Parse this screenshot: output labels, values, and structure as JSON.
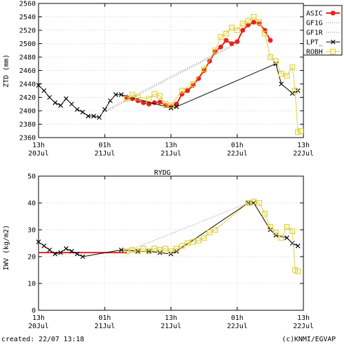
{
  "chart_data": [
    {
      "type": "line",
      "title": "",
      "ylabel": "ZTD (mm)",
      "ylim": [
        2360,
        2560
      ],
      "yticks": [
        2360,
        2380,
        2400,
        2420,
        2440,
        2460,
        2480,
        2500,
        2520,
        2540,
        2560
      ],
      "xlim_hours": [
        0,
        48
      ],
      "xticks": [
        {
          "h": 0,
          "top": "13h",
          "bottom": "20Jul"
        },
        {
          "h": 12,
          "top": "01h",
          "bottom": "21Jul"
        },
        {
          "h": 24,
          "top": "13h",
          "bottom": "21Jul"
        },
        {
          "h": 36,
          "top": "01h",
          "bottom": "22Jul"
        },
        {
          "h": 48,
          "top": "13h",
          "bottom": "22Jul"
        }
      ],
      "grid": true,
      "legend_position": "right",
      "legend": [
        "ASIC",
        "GF1G",
        "GF1R",
        "LPT_",
        "ROBH"
      ],
      "series": [
        {
          "name": "ASIC",
          "color": "#e8221b",
          "marker": "dot",
          "points": [
            [
              16,
              2420
            ],
            [
              17,
              2418
            ],
            [
              18,
              2415
            ],
            [
              19,
              2412
            ],
            [
              20,
              2410
            ],
            [
              21,
              2412
            ],
            [
              22,
              2413
            ],
            [
              23,
              2408
            ],
            [
              24,
              2406
            ],
            [
              25,
              2410
            ],
            [
              26,
              2425
            ],
            [
              27,
              2430
            ],
            [
              28,
              2438
            ],
            [
              29,
              2448
            ],
            [
              30,
              2460
            ],
            [
              31,
              2474
            ],
            [
              32,
              2488
            ],
            [
              33,
              2495
            ],
            [
              34,
              2505
            ],
            [
              35,
              2500
            ],
            [
              36,
              2503
            ],
            [
              37,
              2520
            ],
            [
              38,
              2528
            ],
            [
              39,
              2532
            ],
            [
              40,
              2530
            ],
            [
              41,
              2520
            ],
            [
              42,
              2505
            ]
          ]
        },
        {
          "name": "GF1G",
          "color": "#808080",
          "marker": "dotted",
          "points": [
            [
              12,
              2398
            ],
            [
              36,
              2500
            ]
          ]
        },
        {
          "name": "GF1R",
          "color": "#808080",
          "marker": "dotted",
          "points": [
            [
              12,
              2400
            ],
            [
              36,
              2502
            ]
          ]
        },
        {
          "name": "LPT_",
          "color": "#000000",
          "marker": "cross",
          "points": [
            [
              0,
              2438
            ],
            [
              1,
              2430
            ],
            [
              2,
              2420
            ],
            [
              3,
              2412
            ],
            [
              4,
              2408
            ],
            [
              5,
              2418
            ],
            [
              6,
              2410
            ],
            [
              7,
              2402
            ],
            [
              8,
              2398
            ],
            [
              9,
              2392
            ],
            [
              10,
              2392
            ],
            [
              11,
              2390
            ],
            [
              12,
              2402
            ],
            [
              13,
              2415
            ],
            [
              14,
              2424
            ],
            [
              15,
              2424
            ],
            [
              24,
              2404
            ],
            [
              25,
              2406
            ],
            [
              43,
              2470
            ],
            [
              44,
              2440
            ],
            [
              46,
              2426
            ],
            [
              47,
              2430
            ]
          ]
        },
        {
          "name": "ROBH",
          "color": "#e0d040",
          "marker": "square",
          "points": [
            [
              16,
              2418
            ],
            [
              17,
              2424
            ],
            [
              18,
              2420
            ],
            [
              20,
              2418
            ],
            [
              21,
              2425
            ],
            [
              22,
              2422
            ],
            [
              23,
              2410
            ],
            [
              24,
              2408
            ],
            [
              26,
              2430
            ],
            [
              28,
              2440
            ],
            [
              30,
              2462
            ],
            [
              32,
              2490
            ],
            [
              33,
              2510
            ],
            [
              34,
              2515
            ],
            [
              35,
              2524
            ],
            [
              36,
              2520
            ],
            [
              37,
              2530
            ],
            [
              38,
              2534
            ],
            [
              39,
              2540
            ],
            [
              40,
              2532
            ],
            [
              41,
              2515
            ],
            [
              42,
              2480
            ],
            [
              43,
              2474
            ],
            [
              44,
              2455
            ],
            [
              45,
              2452
            ],
            [
              46,
              2465
            ],
            [
              46.5,
              2430
            ],
            [
              47,
              2368
            ],
            [
              47.5,
              2370
            ]
          ]
        }
      ]
    },
    {
      "type": "line",
      "title": "RYDG",
      "ylabel": "IWV (kg/m2)",
      "ylim": [
        0,
        50
      ],
      "yticks": [
        0,
        10,
        20,
        30,
        40,
        50
      ],
      "xlim_hours": [
        0,
        48
      ],
      "xticks": [
        {
          "h": 0,
          "top": "13h",
          "bottom": "20Jul"
        },
        {
          "h": 12,
          "top": "01h",
          "bottom": "21Jul"
        },
        {
          "h": 24,
          "top": "13h",
          "bottom": "21Jul"
        },
        {
          "h": 36,
          "top": "01h",
          "bottom": "22Jul"
        },
        {
          "h": 48,
          "top": "13h",
          "bottom": "22Jul"
        }
      ],
      "grid": true,
      "series": [
        {
          "name": "ASIC",
          "color": "#e8221b",
          "marker": "line",
          "points": [
            [
              0,
              21.5
            ],
            [
              16,
              21.5
            ]
          ]
        },
        {
          "name": "GF1G",
          "color": "#808080",
          "marker": "dotted",
          "points": [
            [
              16,
              22
            ],
            [
              38,
              40
            ]
          ]
        },
        {
          "name": "LPT_",
          "color": "#000000",
          "marker": "cross",
          "points": [
            [
              0,
              25.5
            ],
            [
              1,
              24
            ],
            [
              2,
              22.5
            ],
            [
              3,
              21
            ],
            [
              4,
              21.5
            ],
            [
              5,
              23
            ],
            [
              6,
              22
            ],
            [
              7,
              21
            ],
            [
              8,
              20
            ],
            [
              15,
              22.5
            ],
            [
              18,
              22
            ],
            [
              20,
              22
            ],
            [
              22,
              21.5
            ],
            [
              24,
              21
            ],
            [
              25,
              22
            ],
            [
              38,
              40
            ],
            [
              39,
              40
            ],
            [
              42,
              30
            ],
            [
              43,
              28
            ],
            [
              45,
              27
            ],
            [
              46,
              25
            ],
            [
              47,
              24
            ]
          ]
        },
        {
          "name": "ROBH",
          "color": "#e0d040",
          "marker": "square",
          "points": [
            [
              16,
              22
            ],
            [
              17,
              22.5
            ],
            [
              18,
              22
            ],
            [
              19,
              23
            ],
            [
              20,
              22
            ],
            [
              21,
              23
            ],
            [
              22,
              22.5
            ],
            [
              23,
              23
            ],
            [
              24,
              22
            ],
            [
              25,
              23
            ],
            [
              26,
              24
            ],
            [
              27,
              25
            ],
            [
              28,
              25.5
            ],
            [
              29,
              26
            ],
            [
              30,
              27
            ],
            [
              31,
              29
            ],
            [
              32,
              30
            ],
            [
              38,
              40
            ],
            [
              39,
              40.5
            ],
            [
              40,
              40
            ],
            [
              41,
              36
            ],
            [
              42,
              31
            ],
            [
              43,
              29
            ],
            [
              44,
              27
            ],
            [
              45,
              31
            ],
            [
              46,
              29.5
            ],
            [
              46.5,
              15
            ],
            [
              47,
              14.5
            ]
          ]
        }
      ]
    }
  ],
  "footer": {
    "created": "created: 22/07 13:18",
    "credit": "(c)KNMI/EGVAP"
  }
}
